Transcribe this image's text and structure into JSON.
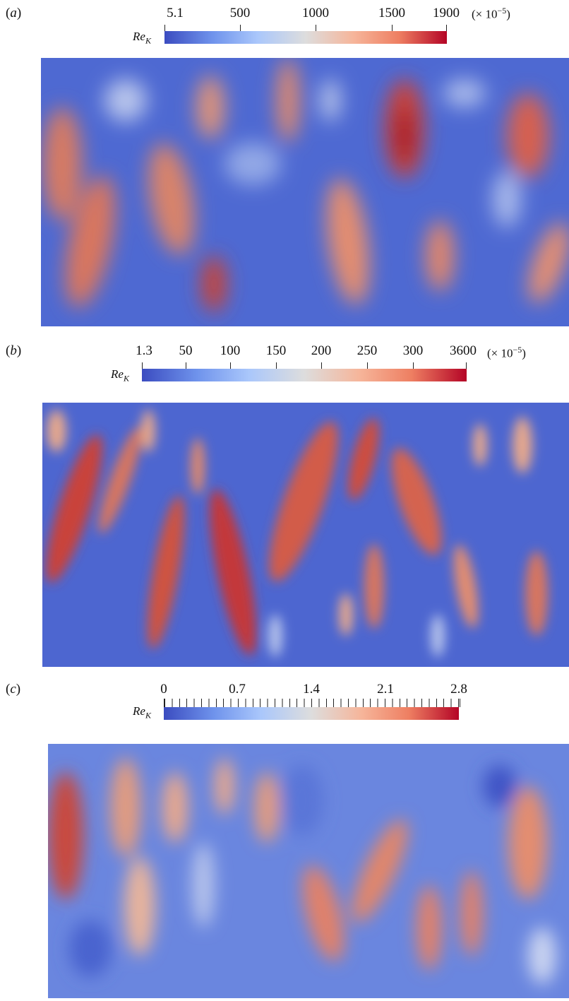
{
  "variable_label": "Re",
  "variable_subscript": "K",
  "colormap": [
    "#3b4cc0",
    "#6f93ec",
    "#aac7fb",
    "#dddddd",
    "#f6b59a",
    "#ee7f62",
    "#b40426"
  ],
  "panels": [
    {
      "letter": "a",
      "ticks": [
        "5.1",
        "500",
        "1000",
        "1500",
        "1900"
      ],
      "scale_note": "(× 10",
      "scale_exp": "−5",
      "scale_close": ")"
    },
    {
      "letter": "b",
      "ticks": [
        "1.3",
        "50",
        "100",
        "150",
        "200",
        "250",
        "300",
        "3600"
      ],
      "scale_note": "(× 10",
      "scale_exp": "−5",
      "scale_close": ")"
    },
    {
      "letter": "c",
      "ticks": [
        "0",
        "0.7",
        "1.4",
        "2.1",
        "2.8"
      ],
      "scale_note": "",
      "scale_exp": "",
      "scale_close": ""
    }
  ]
}
